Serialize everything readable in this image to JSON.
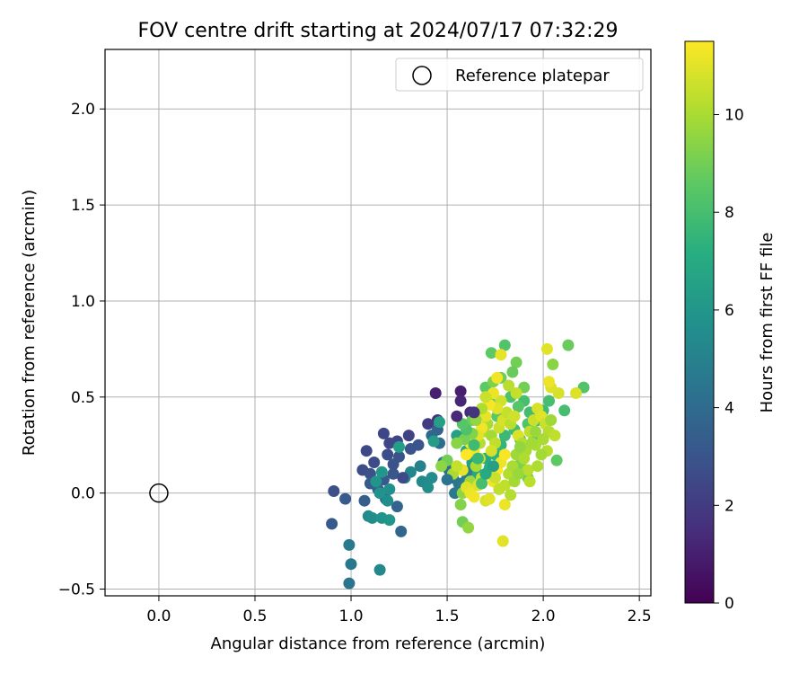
{
  "chart_data": {
    "type": "scatter",
    "title": "FOV centre drift starting at 2024/07/17 07:32:29",
    "xlabel": "Angular distance from reference (arcmin)",
    "ylabel": "Rotation from reference (arcmin)",
    "xlim": [
      -0.28,
      2.56
    ],
    "ylim": [
      -0.535,
      2.31
    ],
    "xticks": [
      "0.0",
      "0.5",
      "1.0",
      "1.5",
      "2.0",
      "2.5"
    ],
    "yticks": [
      "−0.5",
      "0.0",
      "0.5",
      "1.0",
      "1.5",
      "2.0"
    ],
    "grid": true,
    "legend": {
      "position": "top-right",
      "entries": [
        "Reference platepar"
      ]
    },
    "reference_point": {
      "x": 0.0,
      "y": 0.0
    },
    "colorbar": {
      "label": "Hours from first FF file",
      "range": [
        0,
        11.5
      ],
      "ticks": [
        "0",
        "2",
        "4",
        "6",
        "8",
        "10"
      ],
      "colormap": "viridis"
    },
    "points": [
      [
        1.44,
        0.52,
        1.0
      ],
      [
        1.57,
        0.53,
        1.0
      ],
      [
        1.57,
        0.48,
        1.2
      ],
      [
        1.62,
        0.42,
        1.4
      ],
      [
        1.45,
        0.38,
        1.6
      ],
      [
        1.4,
        0.36,
        2.0
      ],
      [
        1.3,
        0.3,
        2.2
      ],
      [
        1.24,
        0.27,
        2.3
      ],
      [
        1.17,
        0.31,
        2.4
      ],
      [
        1.2,
        0.26,
        2.5
      ],
      [
        1.08,
        0.22,
        2.5
      ],
      [
        1.12,
        0.16,
        2.6
      ],
      [
        1.06,
        0.12,
        2.7
      ],
      [
        1.1,
        0.1,
        2.8
      ],
      [
        1.19,
        0.2,
        2.7
      ],
      [
        1.25,
        0.19,
        2.9
      ],
      [
        1.31,
        0.23,
        3.0
      ],
      [
        1.35,
        0.25,
        3.0
      ],
      [
        1.22,
        0.1,
        3.1
      ],
      [
        1.17,
        0.07,
        3.2
      ],
      [
        1.1,
        0.05,
        3.3
      ],
      [
        1.14,
        0.02,
        3.5
      ],
      [
        1.18,
        -0.03,
        3.6
      ],
      [
        1.24,
        -0.07,
        3.7
      ],
      [
        1.26,
        -0.2,
        3.8
      ],
      [
        0.91,
        0.01,
        2.8
      ],
      [
        0.97,
        -0.03,
        3.3
      ],
      [
        1.07,
        -0.04,
        3.4
      ],
      [
        0.9,
        -0.16,
        3.2
      ],
      [
        1.45,
        0.33,
        3.7
      ],
      [
        1.42,
        0.3,
        3.9
      ],
      [
        1.46,
        0.26,
        4.1
      ],
      [
        1.51,
        0.12,
        4.2
      ],
      [
        1.53,
        0.08,
        4.4
      ],
      [
        1.56,
        0.05,
        4.5
      ],
      [
        1.54,
        0.0,
        4.6
      ],
      [
        1.58,
        0.03,
        4.7
      ],
      [
        1.6,
        0.07,
        4.8
      ],
      [
        1.62,
        0.12,
        4.9
      ],
      [
        1.48,
        0.16,
        4.9
      ],
      [
        1.36,
        0.14,
        5.0
      ],
      [
        1.31,
        0.11,
        5.2
      ],
      [
        1.28,
        0.08,
        5.3
      ],
      [
        1.37,
        0.06,
        5.4
      ],
      [
        1.42,
        0.08,
        5.5
      ],
      [
        1.4,
        0.03,
        5.6
      ],
      [
        1.2,
        0.02,
        5.7
      ],
      [
        1.15,
        0.0,
        5.8
      ],
      [
        1.13,
        0.06,
        5.9
      ],
      [
        1.16,
        0.11,
        6.0
      ],
      [
        1.19,
        -0.04,
        5.6
      ],
      [
        1.09,
        -0.12,
        5.4
      ],
      [
        1.11,
        -0.13,
        5.6
      ],
      [
        1.16,
        -0.13,
        5.8
      ],
      [
        1.2,
        -0.14,
        6.0
      ],
      [
        0.99,
        -0.27,
        4.7
      ],
      [
        1.0,
        -0.37,
        4.6
      ],
      [
        0.99,
        -0.47,
        4.5
      ],
      [
        1.15,
        -0.4,
        5.3
      ],
      [
        1.25,
        0.24,
        6.4
      ],
      [
        1.43,
        0.27,
        6.3
      ],
      [
        1.46,
        0.37,
        6.5
      ],
      [
        1.55,
        0.3,
        6.5
      ],
      [
        1.6,
        0.22,
        6.8
      ],
      [
        1.63,
        0.16,
        6.6
      ],
      [
        1.66,
        0.1,
        6.9
      ],
      [
        1.7,
        0.18,
        7.0
      ],
      [
        1.72,
        0.13,
        7.2
      ],
      [
        1.75,
        0.2,
        7.4
      ],
      [
        1.78,
        0.25,
        7.5
      ],
      [
        1.8,
        0.3,
        7.7
      ],
      [
        1.85,
        0.33,
        7.9
      ],
      [
        1.88,
        0.28,
        8.1
      ],
      [
        1.92,
        0.36,
        8.3
      ],
      [
        1.95,
        0.3,
        8.6
      ],
      [
        2.0,
        0.43,
        7.8
      ],
      [
        2.03,
        0.48,
        8.0
      ],
      [
        1.97,
        0.38,
        7.6
      ],
      [
        1.93,
        0.42,
        7.9
      ],
      [
        1.9,
        0.48,
        8.0
      ],
      [
        1.83,
        0.5,
        8.2
      ],
      [
        1.87,
        0.45,
        8.4
      ],
      [
        1.76,
        0.4,
        8.5
      ],
      [
        1.72,
        0.48,
        8.7
      ],
      [
        1.7,
        0.55,
        8.6
      ],
      [
        1.66,
        0.42,
        8.8
      ],
      [
        1.63,
        0.38,
        8.9
      ],
      [
        1.73,
        0.73,
        8.6
      ],
      [
        1.8,
        0.77,
        8.3
      ],
      [
        1.86,
        0.68,
        9.0
      ],
      [
        1.84,
        0.63,
        8.8
      ],
      [
        1.78,
        0.6,
        8.9
      ],
      [
        1.74,
        0.58,
        9.2
      ],
      [
        1.9,
        0.55,
        9.0
      ],
      [
        2.05,
        0.67,
        9.4
      ],
      [
        2.13,
        0.77,
        8.8
      ],
      [
        2.21,
        0.55,
        8.3
      ],
      [
        2.11,
        0.43,
        8.0
      ],
      [
        2.07,
        0.17,
        8.6
      ],
      [
        1.92,
        0.08,
        9.0
      ],
      [
        1.88,
        0.15,
        9.2
      ],
      [
        1.58,
        -0.15,
        9.0
      ],
      [
        1.57,
        -0.06,
        9.3
      ],
      [
        1.61,
        -0.18,
        9.6
      ],
      [
        1.58,
        0.0,
        9.5
      ],
      [
        1.62,
        0.06,
        9.8
      ],
      [
        1.65,
        0.14,
        10.0
      ],
      [
        1.67,
        0.26,
        10.2
      ],
      [
        1.69,
        0.32,
        10.3
      ],
      [
        1.71,
        0.36,
        10.0
      ],
      [
        1.73,
        0.3,
        9.9
      ],
      [
        1.75,
        0.26,
        10.4
      ],
      [
        1.77,
        0.34,
        10.6
      ],
      [
        1.79,
        0.38,
        10.8
      ],
      [
        1.81,
        0.42,
        10.5
      ],
      [
        1.83,
        0.36,
        10.3
      ],
      [
        1.85,
        0.4,
        10.7
      ],
      [
        1.87,
        0.3,
        10.9
      ],
      [
        1.89,
        0.26,
        10.2
      ],
      [
        1.91,
        0.22,
        10.0
      ],
      [
        1.93,
        0.32,
        10.4
      ],
      [
        1.95,
        0.38,
        10.6
      ],
      [
        1.97,
        0.44,
        10.8
      ],
      [
        1.99,
        0.4,
        11.0
      ],
      [
        2.01,
        0.36,
        10.6
      ],
      [
        2.03,
        0.32,
        10.2
      ],
      [
        1.96,
        0.25,
        10.0
      ],
      [
        1.86,
        0.52,
        10.5
      ],
      [
        1.82,
        0.56,
        10.3
      ],
      [
        1.78,
        0.48,
        10.7
      ],
      [
        1.76,
        0.44,
        11.0
      ],
      [
        1.74,
        0.52,
        11.2
      ],
      [
        1.72,
        0.46,
        11.4
      ],
      [
        1.7,
        0.4,
        11.1
      ],
      [
        1.68,
        0.34,
        11.3
      ],
      [
        1.66,
        0.3,
        11.0
      ],
      [
        1.64,
        0.22,
        11.2
      ],
      [
        1.62,
        0.26,
        11.4
      ],
      [
        1.6,
        0.2,
        11.5
      ],
      [
        1.58,
        0.12,
        11.1
      ],
      [
        1.6,
        0.03,
        11.0
      ],
      [
        1.62,
        0.0,
        11.2
      ],
      [
        1.64,
        -0.02,
        11.3
      ],
      [
        1.66,
        0.04,
        10.9
      ],
      [
        1.68,
        0.08,
        10.7
      ],
      [
        1.7,
        -0.04,
        10.8
      ],
      [
        1.72,
        -0.03,
        11.0
      ],
      [
        1.74,
        0.06,
        11.3
      ],
      [
        1.76,
        0.12,
        11.5
      ],
      [
        1.78,
        0.16,
        11.2
      ],
      [
        1.8,
        0.2,
        11.4
      ],
      [
        1.8,
        -0.06,
        11.2
      ],
      [
        1.79,
        -0.25,
        11.0
      ],
      [
        1.8,
        0.04,
        10.4
      ],
      [
        1.82,
        0.1,
        10.2
      ],
      [
        1.84,
        0.14,
        10.0
      ],
      [
        1.86,
        0.2,
        9.8
      ],
      [
        1.88,
        0.24,
        9.6
      ],
      [
        1.9,
        0.18,
        10.1
      ],
      [
        1.92,
        0.12,
        10.3
      ],
      [
        1.94,
        0.26,
        9.9
      ],
      [
        1.96,
        0.32,
        9.7
      ],
      [
        2.0,
        0.28,
        10.0
      ],
      [
        2.02,
        0.22,
        10.2
      ],
      [
        2.04,
        0.38,
        9.8
      ],
      [
        2.06,
        0.3,
        10.4
      ],
      [
        2.08,
        0.52,
        10.8
      ],
      [
        2.04,
        0.55,
        10.9
      ],
      [
        2.03,
        0.58,
        11.2
      ],
      [
        2.02,
        0.75,
        11.0
      ],
      [
        2.17,
        0.52,
        10.9
      ],
      [
        1.78,
        0.72,
        11.1
      ],
      [
        1.76,
        0.6,
        11.3
      ],
      [
        1.7,
        0.5,
        10.6
      ],
      [
        1.68,
        0.44,
        10.1
      ],
      [
        1.65,
        0.38,
        9.6
      ],
      [
        1.63,
        0.31,
        9.3
      ],
      [
        1.59,
        0.28,
        9.1
      ],
      [
        1.55,
        0.26,
        9.4
      ],
      [
        1.5,
        0.17,
        9.0
      ],
      [
        1.47,
        0.14,
        9.5
      ],
      [
        1.53,
        0.1,
        10.0
      ],
      [
        1.55,
        0.14,
        10.5
      ],
      [
        1.67,
        0.18,
        10.5
      ],
      [
        1.73,
        0.22,
        10.8
      ],
      [
        1.75,
        0.08,
        10.6
      ],
      [
        1.77,
        0.02,
        10.4
      ],
      [
        1.83,
        -0.01,
        10.2
      ],
      [
        1.85,
        0.06,
        9.9
      ],
      [
        1.87,
        0.1,
        9.7
      ],
      [
        1.93,
        0.06,
        10.3
      ],
      [
        1.97,
        0.14,
        10.1
      ],
      [
        1.99,
        0.2,
        9.9
      ],
      [
        1.68,
        0.05,
        8.0
      ],
      [
        1.7,
        0.1,
        7.0
      ],
      [
        1.74,
        0.14,
        6.5
      ],
      [
        1.66,
        0.18,
        7.6
      ],
      [
        1.64,
        0.25,
        7.8
      ],
      [
        1.6,
        0.33,
        8.2
      ],
      [
        1.58,
        0.36,
        8.4
      ],
      [
        1.5,
        0.07,
        4.4
      ],
      [
        1.55,
        0.4,
        1.3
      ],
      [
        1.64,
        0.42,
        1.7
      ],
      [
        1.27,
        0.08,
        2.6
      ],
      [
        1.22,
        0.15,
        2.9
      ]
    ]
  }
}
